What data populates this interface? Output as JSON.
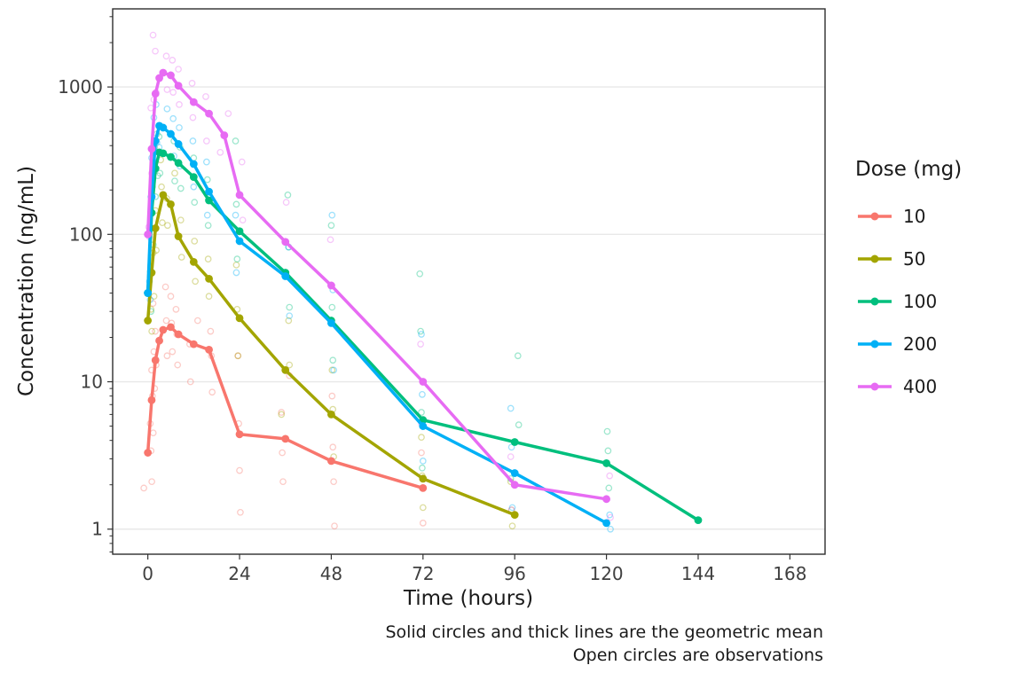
{
  "figure": {
    "xlabel": "Time (hours)",
    "ylabel": "Concentration (ng/mL)",
    "legend_title": "Dose (mg)",
    "caption_line1": "Solid circles and thick lines are the geometric mean",
    "caption_line2": "Open circles are observations"
  },
  "chart_data": {
    "type": "line",
    "title": "",
    "xlabel": "Time (hours)",
    "ylabel": "Concentration (ng/mL)",
    "y_scale": "log10",
    "x_ticks": [
      0,
      24,
      48,
      72,
      96,
      120,
      144,
      168
    ],
    "y_ticks": [
      1,
      10,
      100,
      1000
    ],
    "y_minor_multiples": [
      2,
      3,
      4,
      5,
      6,
      7,
      8,
      9
    ],
    "xlim": [
      -9.2,
      177.2
    ],
    "ylim_log10": [
      -0.17,
      3.53
    ],
    "legend": {
      "title": "Dose (mg)",
      "position": "right"
    },
    "grid": "horizontal-major",
    "series": [
      {
        "label": "10",
        "color": "#F8766D",
        "mean": {
          "t": [
            0,
            1,
            2,
            3,
            4,
            6,
            8,
            12,
            16,
            24,
            36,
            48,
            72
          ],
          "v": [
            3.3,
            7.5,
            14,
            19,
            22.5,
            23.5,
            21,
            18,
            16.5,
            4.4,
            4.1,
            2.9,
            1.9
          ]
        },
        "observations": [
          [
            0,
            1.9
          ],
          [
            0,
            2.1
          ],
          [
            0,
            3.4
          ],
          [
            0,
            5.2
          ],
          [
            1,
            4.5
          ],
          [
            1,
            8
          ],
          [
            1,
            12
          ],
          [
            2,
            9
          ],
          [
            2,
            16
          ],
          [
            2,
            34
          ],
          [
            3,
            13
          ],
          [
            3,
            22
          ],
          [
            4,
            15
          ],
          [
            4,
            26
          ],
          [
            4,
            44
          ],
          [
            6,
            16
          ],
          [
            6,
            25
          ],
          [
            6,
            38
          ],
          [
            8,
            13
          ],
          [
            8,
            21
          ],
          [
            8,
            31
          ],
          [
            12,
            10
          ],
          [
            12,
            18
          ],
          [
            12,
            26
          ],
          [
            16,
            8.5
          ],
          [
            16,
            15
          ],
          [
            16,
            22
          ],
          [
            24,
            1.3
          ],
          [
            24,
            2.5
          ],
          [
            24,
            5.2
          ],
          [
            24,
            15
          ],
          [
            36,
            2.1
          ],
          [
            36,
            3.3
          ],
          [
            36,
            6.2
          ],
          [
            36,
            11
          ],
          [
            48,
            1.05
          ],
          [
            48,
            2.1
          ],
          [
            48,
            3.6
          ],
          [
            48,
            8
          ],
          [
            72,
            1.1
          ],
          [
            72,
            1.9
          ],
          [
            72,
            3.3
          ]
        ]
      },
      {
        "label": "50",
        "color": "#A3A500",
        "mean": {
          "t": [
            0,
            1,
            2,
            4,
            6,
            8,
            12,
            16,
            24,
            36,
            48,
            72,
            96
          ],
          "v": [
            26,
            55,
            110,
            185,
            160,
            97,
            65,
            50,
            27,
            12,
            6,
            2.2,
            1.25
          ]
        },
        "observations": [
          [
            0,
            22
          ],
          [
            0,
            31
          ],
          [
            1,
            38
          ],
          [
            1,
            75
          ],
          [
            2,
            78
          ],
          [
            2,
            145
          ],
          [
            4,
            120
          ],
          [
            4,
            210
          ],
          [
            4,
            320
          ],
          [
            6,
            115
          ],
          [
            6,
            175
          ],
          [
            6,
            260
          ],
          [
            8,
            70
          ],
          [
            8,
            125
          ],
          [
            12,
            48
          ],
          [
            12,
            90
          ],
          [
            16,
            38
          ],
          [
            16,
            68
          ],
          [
            24,
            15
          ],
          [
            24,
            31
          ],
          [
            24,
            62
          ],
          [
            36,
            6
          ],
          [
            36,
            13
          ],
          [
            36,
            26
          ],
          [
            48,
            3.1
          ],
          [
            48,
            6.5
          ],
          [
            48,
            12
          ],
          [
            72,
            1.4
          ],
          [
            72,
            2.3
          ],
          [
            72,
            4.2
          ],
          [
            96,
            1.05
          ],
          [
            96,
            1.35
          ],
          [
            96,
            2.1
          ]
        ]
      },
      {
        "label": "100",
        "color": "#00BF7D",
        "mean": {
          "t": [
            0,
            1,
            2,
            3,
            4,
            6,
            8,
            12,
            16,
            24,
            36,
            48,
            72,
            96,
            120,
            144
          ],
          "v": [
            40,
            140,
            280,
            360,
            355,
            335,
            305,
            245,
            170,
            105,
            55,
            26,
            5.5,
            3.9,
            2.8,
            1.15
          ]
        },
        "observations": [
          [
            0,
            30
          ],
          [
            0,
            56
          ],
          [
            1,
            85
          ],
          [
            1,
            210
          ],
          [
            2,
            180
          ],
          [
            2,
            390
          ],
          [
            3,
            250
          ],
          [
            3,
            480
          ],
          [
            4,
            260
          ],
          [
            4,
            460
          ],
          [
            6,
            230
          ],
          [
            6,
            430
          ],
          [
            8,
            205
          ],
          [
            8,
            390
          ],
          [
            12,
            165
          ],
          [
            12,
            330
          ],
          [
            16,
            115
          ],
          [
            16,
            235
          ],
          [
            24,
            68
          ],
          [
            24,
            160
          ],
          [
            24,
            430
          ],
          [
            36,
            32
          ],
          [
            36,
            82
          ],
          [
            36,
            185
          ],
          [
            48,
            14
          ],
          [
            48,
            32
          ],
          [
            48,
            115
          ],
          [
            72,
            2.6
          ],
          [
            72,
            6.2
          ],
          [
            72,
            22
          ],
          [
            72,
            54
          ],
          [
            96,
            2.2
          ],
          [
            96,
            5.1
          ],
          [
            96,
            15
          ],
          [
            120,
            1.9
          ],
          [
            120,
            3.4
          ],
          [
            120,
            4.6
          ],
          [
            144,
            1.15
          ]
        ]
      },
      {
        "label": "200",
        "color": "#00B0F6",
        "mean": {
          "t": [
            0,
            1,
            2,
            3,
            4,
            6,
            8,
            12,
            16,
            24,
            36,
            48,
            72,
            96,
            120
          ],
          "v": [
            40,
            180,
            430,
            545,
            530,
            480,
            410,
            300,
            195,
            90,
            52,
            25,
            5,
            2.4,
            1.1
          ]
        },
        "observations": [
          [
            0,
            36
          ],
          [
            0,
            48
          ],
          [
            1,
            110
          ],
          [
            1,
            330
          ],
          [
            2,
            310
          ],
          [
            2,
            620
          ],
          [
            3,
            420
          ],
          [
            3,
            760
          ],
          [
            4,
            390
          ],
          [
            4,
            710
          ],
          [
            6,
            340
          ],
          [
            6,
            610
          ],
          [
            8,
            290
          ],
          [
            8,
            530
          ],
          [
            12,
            210
          ],
          [
            12,
            430
          ],
          [
            16,
            135
          ],
          [
            16,
            310
          ],
          [
            24,
            55
          ],
          [
            24,
            135
          ],
          [
            36,
            28
          ],
          [
            36,
            82
          ],
          [
            48,
            12
          ],
          [
            48,
            42
          ],
          [
            48,
            135
          ],
          [
            72,
            2.9
          ],
          [
            72,
            8.2
          ],
          [
            72,
            21
          ],
          [
            96,
            1.4
          ],
          [
            96,
            3.6
          ],
          [
            96,
            6.6
          ],
          [
            120,
            1.0
          ],
          [
            120,
            1.25
          ]
        ]
      },
      {
        "label": "400",
        "color": "#E76BF3",
        "mean": {
          "t": [
            0,
            1,
            2,
            3,
            4,
            6,
            8,
            12,
            16,
            20,
            24,
            36,
            48,
            72,
            96,
            120
          ],
          "v": [
            100,
            380,
            900,
            1150,
            1250,
            1200,
            1020,
            790,
            660,
            470,
            185,
            89,
            45,
            10,
            2.0,
            1.6
          ]
        },
        "observations": [
          [
            0,
            96
          ],
          [
            0,
            112
          ],
          [
            1,
            260
          ],
          [
            1,
            720
          ],
          [
            2,
            820
          ],
          [
            2,
            2250
          ],
          [
            3,
            920
          ],
          [
            3,
            1750
          ],
          [
            4,
            960
          ],
          [
            4,
            1620
          ],
          [
            6,
            920
          ],
          [
            6,
            1520
          ],
          [
            8,
            760
          ],
          [
            8,
            1320
          ],
          [
            12,
            620
          ],
          [
            12,
            1060
          ],
          [
            16,
            430
          ],
          [
            16,
            860
          ],
          [
            20,
            360
          ],
          [
            20,
            660
          ],
          [
            24,
            125
          ],
          [
            24,
            310
          ],
          [
            36,
            52
          ],
          [
            36,
            165
          ],
          [
            48,
            26
          ],
          [
            48,
            92
          ],
          [
            72,
            5.2
          ],
          [
            72,
            18
          ],
          [
            96,
            1.35
          ],
          [
            96,
            3.1
          ],
          [
            120,
            1.2
          ],
          [
            120,
            2.3
          ]
        ]
      }
    ]
  }
}
